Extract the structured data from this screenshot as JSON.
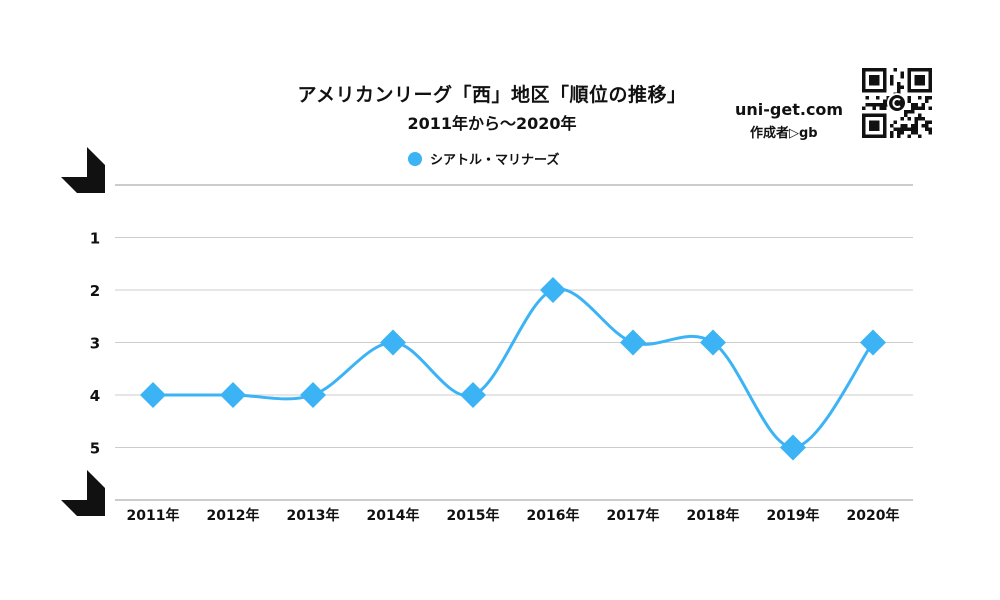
{
  "header": {
    "title": "アメリカンリーグ「西」地区「順位の推移」",
    "subtitle": "2011年から～2020年",
    "brand": "uni-get.com",
    "author": "作成者▷gb",
    "qr_icon": "qr-code-icon"
  },
  "colors": {
    "series": "#3bb3f5",
    "grid": "#cccccc",
    "frame": "#999999",
    "corner": "#111111"
  },
  "chart_data": {
    "type": "line",
    "title": "アメリカンリーグ「西」地区「順位の推移」",
    "subtitle": "2011年から～2020年",
    "xlabel": "",
    "ylabel": "",
    "categories": [
      "2011年",
      "2012年",
      "2013年",
      "2014年",
      "2015年",
      "2016年",
      "2017年",
      "2018年",
      "2019年",
      "2020年"
    ],
    "series": [
      {
        "name": "シアトル・マリナーズ",
        "values": [
          4,
          4,
          4,
          3,
          4,
          2,
          3,
          3,
          5,
          3
        ]
      }
    ],
    "yticks": [
      "1",
      "2",
      "3",
      "4",
      "5"
    ],
    "ylim": [
      0,
      6
    ],
    "y_reversed": true,
    "grid": true,
    "legend": "top-center",
    "smooth": true,
    "marker": "diamond"
  }
}
